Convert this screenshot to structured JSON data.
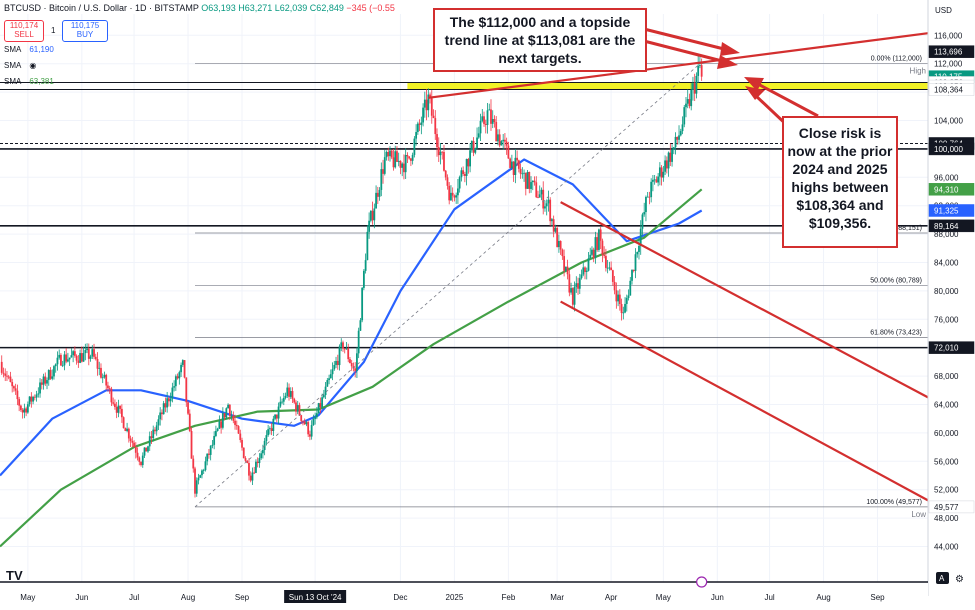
{
  "header": {
    "symbol_line": "BTCUSD · Bitcoin / U.S. Dollar · 1D · BITSTAMP",
    "ohlc": "O63,193 H63,271 L62,039 C62,849",
    "change": "−345 (−0.55",
    "sell_price": "110,174",
    "sell_label": "SELL",
    "quantity": "1",
    "buy_price": "110,175",
    "buy_label": "BUY"
  },
  "indicators": [
    {
      "name": "SMA",
      "value": "61,190",
      "color": "#2962ff"
    },
    {
      "name": "SMA",
      "value": "",
      "color": "#43a047"
    },
    {
      "name": "SMA",
      "value": "63,381",
      "color": "#43a047"
    }
  ],
  "colors": {
    "up": "#089981",
    "down": "#f23645",
    "sma_blue": "#2962ff",
    "sma_green": "#43a047",
    "annotation": "#d32f2f",
    "highlight": "#f0f000",
    "price_tag": "#131722"
  },
  "annotations": {
    "top": "The $112,000 and a topside trend line at $113,081 are the next targets.",
    "right": "Close risk is now at the prior 2024 and 2025 highs between $108,364 and $109,356."
  },
  "chart_data": {
    "type": "candlestick",
    "title": "BTCUSD · Bitcoin / U.S. Dollar · 1D · BITSTAMP",
    "currency": "USD",
    "y_axis_ticks": [
      116000,
      112000,
      108000,
      104000,
      100000,
      96000,
      92000,
      88000,
      84000,
      80000,
      76000,
      72000,
      68000,
      64000,
      60000,
      56000,
      52000,
      48000,
      44000
    ],
    "y_axis_tick_labels": [
      "116,000",
      "112,000",
      "108,000",
      "104,000",
      "100,000",
      "96,000",
      "92,000",
      "88,000",
      "84,000",
      "80,000",
      "76,000",
      "72,000",
      "68,000",
      "64,000",
      "60,000",
      "56,000",
      "52,000",
      "48,000",
      "44,000"
    ],
    "ylim": [
      39000,
      119000
    ],
    "x_axis_labels": [
      {
        "label": "May",
        "date": "2024-05-01"
      },
      {
        "label": "Jun",
        "date": "2024-06-01"
      },
      {
        "label": "Jul",
        "date": "2024-07-01"
      },
      {
        "label": "Aug",
        "date": "2024-08-01"
      },
      {
        "label": "Sep",
        "date": "2024-09-01"
      },
      {
        "label": "Sun 13 Oct '24",
        "date": "2024-10-13"
      },
      {
        "label": "Dec",
        "date": "2024-12-01"
      },
      {
        "label": "2025",
        "date": "2025-01-01"
      },
      {
        "label": "Feb",
        "date": "2025-02-01"
      },
      {
        "label": "Mar",
        "date": "2025-03-01"
      },
      {
        "label": "Apr",
        "date": "2025-04-01"
      },
      {
        "label": "May",
        "date": "2025-05-01"
      },
      {
        "label": "Jun",
        "date": "2025-06-01"
      },
      {
        "label": "Jul",
        "date": "2025-07-01"
      },
      {
        "label": "Aug",
        "date": "2025-08-01"
      },
      {
        "label": "Sep",
        "date": "2025-09-01"
      }
    ],
    "date_range": [
      "2024-04-15",
      "2025-09-30"
    ],
    "last_date": "2025-05-23",
    "price_path": [
      [
        "2024-04-15",
        70000
      ],
      [
        "2024-04-28",
        63000
      ],
      [
        "2024-05-20",
        70500
      ],
      [
        "2024-06-07",
        71000
      ],
      [
        "2024-06-25",
        61500
      ],
      [
        "2024-07-05",
        56000
      ],
      [
        "2024-07-29",
        69500
      ],
      [
        "2024-08-05",
        52000
      ],
      [
        "2024-08-24",
        64000
      ],
      [
        "2024-09-06",
        54000
      ],
      [
        "2024-09-27",
        66000
      ],
      [
        "2024-10-10",
        60000
      ],
      [
        "2024-10-29",
        72500
      ],
      [
        "2024-11-05",
        68500
      ],
      [
        "2024-11-12",
        88000
      ],
      [
        "2024-11-22",
        98500
      ],
      [
        "2024-12-05",
        98000
      ],
      [
        "2024-12-17",
        107000
      ],
      [
        "2024-12-30",
        93000
      ],
      [
        "2025-01-20",
        105000
      ],
      [
        "2025-02-03",
        98000
      ],
      [
        "2025-02-24",
        92000
      ],
      [
        "2025-03-04",
        84000
      ],
      [
        "2025-03-10",
        79000
      ],
      [
        "2025-03-25",
        87500
      ],
      [
        "2025-04-08",
        76500
      ],
      [
        "2025-04-22",
        93500
      ],
      [
        "2025-05-08",
        100500
      ],
      [
        "2025-05-22",
        111500
      ],
      [
        "2025-05-23",
        110175
      ]
    ],
    "series": [
      {
        "name": "SMA",
        "values": "blue moving average",
        "points": [
          [
            "2024-04-15",
            54000
          ],
          [
            "2024-05-15",
            62000
          ],
          [
            "2024-06-15",
            66000
          ],
          [
            "2024-07-05",
            66000
          ],
          [
            "2024-08-01",
            64500
          ],
          [
            "2024-09-01",
            62000
          ],
          [
            "2024-10-01",
            61000
          ],
          [
            "2024-10-15",
            62500
          ],
          [
            "2024-11-10",
            70000
          ],
          [
            "2024-12-01",
            80000
          ],
          [
            "2025-01-01",
            91500
          ],
          [
            "2025-02-10",
            98500
          ],
          [
            "2025-03-10",
            95000
          ],
          [
            "2025-04-10",
            87000
          ],
          [
            "2025-05-10",
            89500
          ],
          [
            "2025-05-23",
            91325
          ]
        ]
      },
      {
        "name": "SMA",
        "values": "green moving average",
        "points": [
          [
            "2024-04-15",
            44000
          ],
          [
            "2024-05-20",
            52000
          ],
          [
            "2024-07-01",
            58000
          ],
          [
            "2024-08-05",
            61000
          ],
          [
            "2024-09-10",
            63000
          ],
          [
            "2024-10-15",
            63300
          ],
          [
            "2024-11-15",
            66500
          ],
          [
            "2024-12-20",
            72500
          ],
          [
            "2025-02-01",
            78500
          ],
          [
            "2025-03-15",
            84000
          ],
          [
            "2025-04-20",
            87500
          ],
          [
            "2025-05-23",
            94310
          ]
        ]
      }
    ],
    "horizontal_lines": [
      {
        "price": 109356,
        "style": "solid"
      },
      {
        "price": 108364,
        "style": "solid"
      },
      {
        "price": 100764,
        "style": "dashed"
      },
      {
        "price": 100000,
        "style": "solid"
      },
      {
        "price": 89164,
        "style": "solid"
      },
      {
        "price": 72010,
        "style": "solid"
      }
    ],
    "highlight_zone": [
      108364,
      109356
    ],
    "fibonacci": [
      {
        "label": "0.00% (112,000)",
        "price": 112000
      },
      {
        "label": "38.2% (88,151)",
        "price": 88151
      },
      {
        "label": "50.00% (80,789)",
        "price": 80789
      },
      {
        "label": "61.80% (73,423)",
        "price": 73423
      },
      {
        "label": "100.00% (49,577)",
        "price": 49577
      }
    ],
    "price_labels": [
      {
        "text": "113,696",
        "price": 113696,
        "bg": "#131722",
        "fg": "#ffffff"
      },
      {
        "text": "110,175",
        "price": 110175,
        "bg": "#089981",
        "fg": "#ffffff"
      },
      {
        "text": "109,356",
        "price": 109356,
        "bg": "#ffffff",
        "fg": "#131722"
      },
      {
        "text": "109,356",
        "price": 108850,
        "bg": "#ffffff",
        "fg": "#131722"
      },
      {
        "text": "108,364",
        "price": 108364,
        "bg": "#ffffff",
        "fg": "#131722"
      },
      {
        "text": "100,764",
        "price": 100764,
        "bg": "#131722",
        "fg": "#ffffff"
      },
      {
        "text": "100,000",
        "price": 100000,
        "bg": "#131722",
        "fg": "#ffffff"
      },
      {
        "text": "94,310",
        "price": 94310,
        "bg": "#43a047",
        "fg": "#ffffff"
      },
      {
        "text": "91,325",
        "price": 91325,
        "bg": "#2962ff",
        "fg": "#ffffff"
      },
      {
        "text": "89,164",
        "price": 89164,
        "bg": "#131722",
        "fg": "#ffffff"
      },
      {
        "text": "72,010",
        "price": 72010,
        "bg": "#131722",
        "fg": "#ffffff"
      },
      {
        "text": "49,577",
        "price": 49577,
        "bg": "#ffffff",
        "fg": "#131722"
      }
    ],
    "high_label": "High",
    "low_label": "Low",
    "trendlines": [
      {
        "kind": "topside trend line",
        "from": [
          "2024-12-17",
          107200
        ],
        "to": [
          "2025-09-30",
          116300
        ]
      },
      {
        "kind": "channel upper",
        "from": [
          "2025-03-03",
          92500
        ],
        "to": [
          "2025-09-30",
          65000
        ]
      },
      {
        "kind": "channel lower",
        "from": [
          "2025-03-03",
          78500
        ],
        "to": [
          "2025-09-30",
          50500
        ]
      },
      {
        "kind": "fib anchor",
        "from": [
          "2024-08-05",
          49577
        ],
        "to": [
          "2025-05-22",
          112000
        ]
      }
    ],
    "logo_text": "TV",
    "axis_buttons": [
      "A",
      "⚙"
    ]
  }
}
